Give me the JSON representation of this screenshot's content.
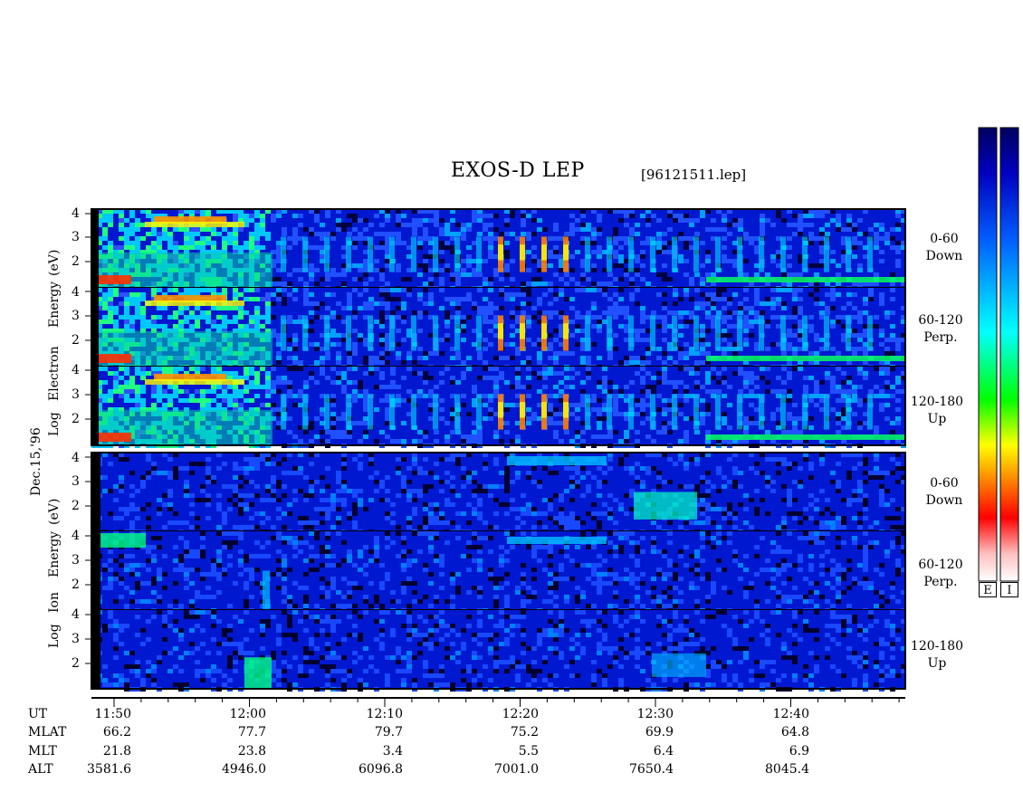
{
  "chart_data": {
    "type": "heatmap",
    "title": "EXOS-D LEP",
    "file": "[96121511.lep]",
    "date_label": "Dec.15,'96",
    "y_tick_labels": [
      "4",
      "3",
      "2"
    ],
    "electron_axis_label": [
      "Log",
      "Electron",
      "Energy",
      "(eV)"
    ],
    "ion_axis_label": [
      "Log",
      "Ion",
      "Energy",
      "(eV)"
    ],
    "panels": [
      {
        "species": "electron",
        "pitch": "0-60",
        "dir": "Down"
      },
      {
        "species": "electron",
        "pitch": "60-120",
        "dir": "Perp."
      },
      {
        "species": "electron",
        "pitch": "120-180",
        "dir": "Up"
      },
      {
        "species": "ion",
        "pitch": "0-60",
        "dir": "Down"
      },
      {
        "species": "ion",
        "pitch": "60-120",
        "dir": "Perp."
      },
      {
        "species": "ion",
        "pitch": "120-180",
        "dir": "Up"
      }
    ],
    "ephemeris": {
      "row_labels": [
        "UT",
        "MLAT",
        "MLT",
        "ALT"
      ],
      "columns": [
        {
          "UT": "11:50",
          "MLAT": "66.2",
          "MLT": "21.8",
          "ALT": "3581.6"
        },
        {
          "UT": "12:00",
          "MLAT": "77.7",
          "MLT": "23.8",
          "ALT": "4946.0"
        },
        {
          "UT": "12:10",
          "MLAT": "79.7",
          "MLT": "3.4",
          "ALT": "6096.8"
        },
        {
          "UT": "12:20",
          "MLAT": "75.2",
          "MLT": "5.5",
          "ALT": "7001.0"
        },
        {
          "UT": "12:30",
          "MLAT": "69.9",
          "MLT": "6.4",
          "ALT": "7650.4"
        },
        {
          "UT": "12:40",
          "MLAT": "64.8",
          "MLT": "6.9",
          "ALT": "8045.4"
        }
      ]
    },
    "colorbar_labels": [
      "E",
      "I"
    ],
    "colorscale": [
      "#ffffff",
      "#ff0000",
      "#ff8000",
      "#ffff00",
      "#00ff00",
      "#00ffff",
      "#0000ff",
      "#000060"
    ]
  }
}
